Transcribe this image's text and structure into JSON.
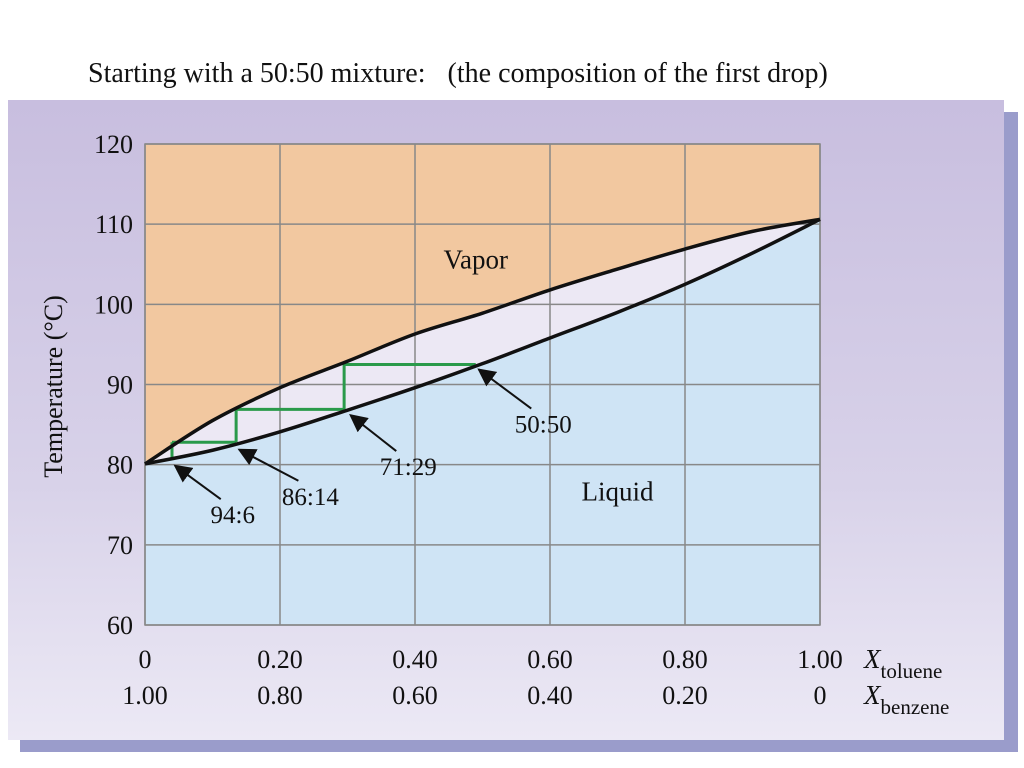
{
  "title": {
    "main": "Starting with a 50:50 mixture:",
    "note": "(the composition of the first drop)"
  },
  "colors": {
    "vapor_region": "#f2c8a0",
    "liquid_region": "#cfe4f5",
    "lens_region": "#ece8f4",
    "step_lines": "#2a9a4a",
    "curves": "#111111",
    "grid": "#888888"
  },
  "chart_data": {
    "type": "line",
    "ylabel": "Temperature (°C)",
    "ylim": [
      60,
      120
    ],
    "xlim": [
      0,
      1
    ],
    "yticks": [
      "60",
      "70",
      "80",
      "90",
      "100",
      "110",
      "120"
    ],
    "xaxes": [
      {
        "label": "X",
        "subscript": "toluene",
        "ticks": [
          "0",
          "0.20",
          "0.40",
          "0.60",
          "0.80",
          "1.00"
        ]
      },
      {
        "label": "X",
        "subscript": "benzene",
        "ticks": [
          "1.00",
          "0.80",
          "0.60",
          "0.40",
          "0.20",
          "0"
        ]
      }
    ],
    "grid": true,
    "region_labels": [
      {
        "text": "Vapor",
        "x": 0.49,
        "y": 104.5
      },
      {
        "text": "Liquid",
        "x": 0.7,
        "y": 75.5
      }
    ],
    "series": [
      {
        "x": [
          0,
          0.1,
          0.2,
          0.3,
          0.4,
          0.5,
          0.6,
          0.7,
          0.8,
          0.9,
          1.0
        ],
        "y": [
          80.1,
          85.5,
          89.6,
          92.9,
          96.3,
          98.9,
          101.8,
          104.4,
          106.9,
          109.1,
          110.6
        ]
      },
      {
        "x": [
          0,
          0.1,
          0.2,
          0.3,
          0.4,
          0.5,
          0.6,
          0.7,
          0.8,
          0.9,
          1.0
        ],
        "y": [
          80.1,
          81.8,
          84.1,
          86.8,
          89.6,
          92.6,
          95.8,
          99.0,
          102.5,
          106.4,
          110.6
        ]
      }
    ],
    "steps": [
      {
        "liquid_x": 0.49,
        "vapor_x": 0.295,
        "T": 92.5
      },
      {
        "liquid_x": 0.295,
        "vapor_x": 0.135,
        "T": 86.9
      },
      {
        "liquid_x": 0.135,
        "vapor_x": 0.04,
        "T": 82.8
      }
    ],
    "annotations": [
      {
        "text": "50:50",
        "x": 0.49,
        "T": 92.5,
        "tx": 0.59,
        "ty": 84.0
      },
      {
        "text": "71:29",
        "x": 0.3,
        "T": 86.8,
        "tx": 0.39,
        "ty": 78.7
      },
      {
        "text": "86:14",
        "x": 0.135,
        "T": 82.5,
        "tx": 0.245,
        "ty": 75.0
      },
      {
        "text": "94:6",
        "x": 0.04,
        "T": 80.5,
        "tx": 0.13,
        "ty": 72.7
      }
    ]
  }
}
